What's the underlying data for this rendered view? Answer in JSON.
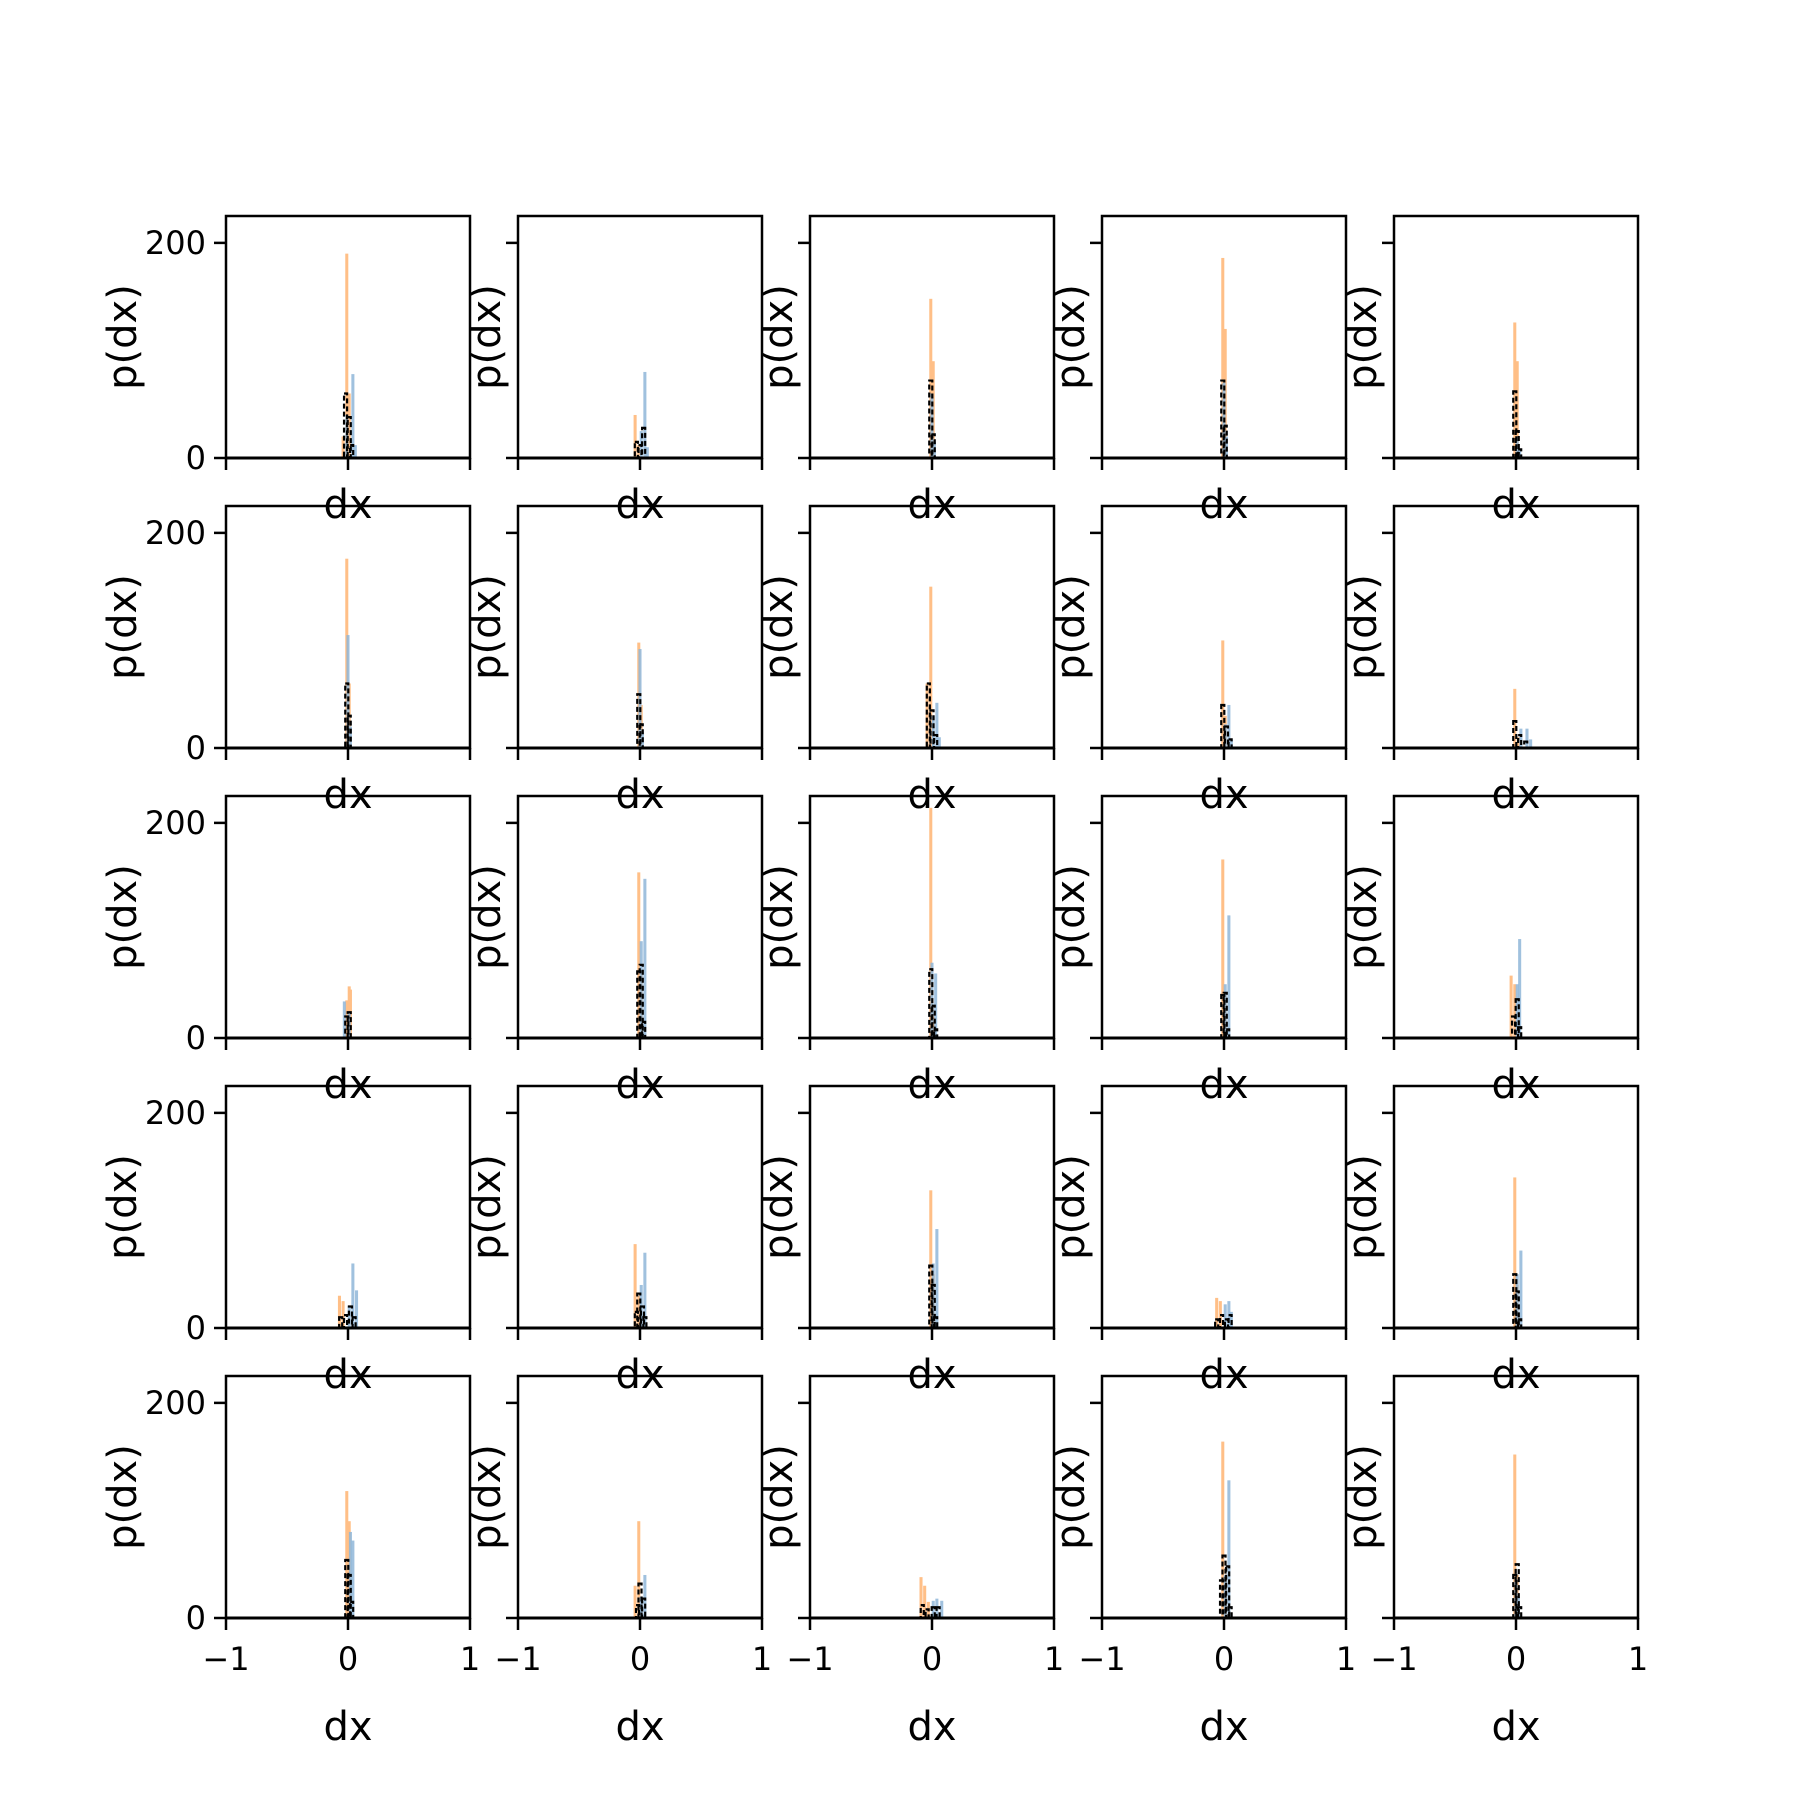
{
  "chart_data": {
    "type": "histogram-grid",
    "rows": 5,
    "cols": 5,
    "xlabel": "dx",
    "ylabel": "p(dx)",
    "xlim": [
      -1,
      1
    ],
    "ylim": [
      0,
      225
    ],
    "xticks": [
      -1,
      0,
      1
    ],
    "xtick_labels": [
      "−1",
      "0",
      "1"
    ],
    "yticks": [
      0,
      200
    ],
    "ytick_labels": [
      "0",
      "200"
    ],
    "grid": false,
    "legend": "none",
    "series_colors": {
      "orange": "#ffbf87",
      "blue": "#8fb6d8",
      "black": "#000000"
    },
    "bin_width": 0.025,
    "panels": [
      {
        "orange": [
          [
            -0.04,
            20
          ],
          [
            -0.01,
            190
          ],
          [
            0.01,
            60
          ]
        ],
        "blue": [
          [
            -0.01,
            40
          ],
          [
            0.04,
            78
          ],
          [
            0.06,
            12
          ]
        ],
        "black": [
          [
            -0.02,
            60
          ],
          [
            0.01,
            38
          ],
          [
            0.03,
            12
          ]
        ]
      },
      {
        "orange": [
          [
            -0.04,
            40
          ],
          [
            -0.01,
            12
          ]
        ],
        "blue": [
          [
            0.01,
            25
          ],
          [
            0.04,
            80
          ],
          [
            0.06,
            10
          ]
        ],
        "black": [
          [
            -0.03,
            15
          ],
          [
            0.0,
            12
          ],
          [
            0.03,
            28
          ]
        ]
      },
      {
        "orange": [
          [
            -0.01,
            148
          ],
          [
            0.01,
            90
          ]
        ],
        "blue": [
          [
            0.0,
            60
          ],
          [
            0.02,
            15
          ]
        ],
        "black": [
          [
            -0.01,
            72
          ],
          [
            0.01,
            22
          ]
        ]
      },
      {
        "orange": [
          [
            -0.01,
            186
          ],
          [
            0.01,
            120
          ]
        ],
        "blue": [
          [
            0.0,
            70
          ],
          [
            0.02,
            20
          ]
        ],
        "black": [
          [
            -0.01,
            72
          ],
          [
            0.01,
            30
          ]
        ]
      },
      {
        "orange": [
          [
            -0.01,
            126
          ],
          [
            0.01,
            90
          ]
        ],
        "blue": [
          [
            0.01,
            20
          ],
          [
            0.03,
            8
          ]
        ],
        "black": [
          [
            -0.01,
            62
          ],
          [
            0.01,
            25
          ],
          [
            0.03,
            8
          ]
        ]
      },
      {
        "orange": [
          [
            -0.01,
            176
          ],
          [
            0.01,
            60
          ]
        ],
        "blue": [
          [
            0.0,
            105
          ],
          [
            0.02,
            20
          ]
        ],
        "black": [
          [
            -0.01,
            60
          ],
          [
            0.01,
            30
          ]
        ]
      },
      {
        "orange": [
          [
            -0.01,
            98
          ],
          [
            0.01,
            40
          ]
        ],
        "blue": [
          [
            0.0,
            92
          ],
          [
            0.02,
            15
          ]
        ],
        "black": [
          [
            -0.01,
            50
          ],
          [
            0.01,
            22
          ]
        ]
      },
      {
        "orange": [
          [
            -0.04,
            60
          ],
          [
            -0.01,
            150
          ]
        ],
        "blue": [
          [
            0.01,
            30
          ],
          [
            0.04,
            42
          ],
          [
            0.06,
            10
          ]
        ],
        "black": [
          [
            -0.03,
            60
          ],
          [
            0.0,
            35
          ],
          [
            0.03,
            12
          ]
        ]
      },
      {
        "orange": [
          [
            -0.01,
            100
          ],
          [
            0.01,
            30
          ]
        ],
        "blue": [
          [
            0.01,
            22
          ],
          [
            0.04,
            40
          ],
          [
            0.06,
            8
          ]
        ],
        "black": [
          [
            -0.01,
            40
          ],
          [
            0.02,
            20
          ],
          [
            0.05,
            8
          ]
        ]
      },
      {
        "orange": [
          [
            -0.01,
            55
          ],
          [
            0.02,
            10
          ]
        ],
        "blue": [
          [
            0.04,
            18
          ],
          [
            0.09,
            18
          ],
          [
            0.12,
            8
          ]
        ],
        "black": [
          [
            -0.01,
            25
          ],
          [
            0.03,
            12
          ],
          [
            0.08,
            6
          ]
        ]
      },
      {
        "orange": [
          [
            -0.01,
            35
          ],
          [
            0.01,
            48
          ],
          [
            0.02,
            45
          ]
        ],
        "blue": [
          [
            -0.03,
            34
          ],
          [
            0.01,
            25
          ]
        ],
        "black": [
          [
            -0.01,
            20
          ],
          [
            0.01,
            24
          ]
        ]
      },
      {
        "orange": [
          [
            -0.01,
            154
          ],
          [
            0.01,
            60
          ]
        ],
        "blue": [
          [
            0.01,
            90
          ],
          [
            0.04,
            148
          ]
        ],
        "black": [
          [
            -0.01,
            62
          ],
          [
            0.01,
            68
          ],
          [
            0.03,
            15
          ]
        ]
      },
      {
        "orange": [
          [
            -0.01,
            214
          ],
          [
            0.01,
            20
          ]
        ],
        "blue": [
          [
            0.0,
            70
          ],
          [
            0.03,
            60
          ]
        ],
        "black": [
          [
            -0.01,
            64
          ],
          [
            0.01,
            30
          ],
          [
            0.03,
            8
          ]
        ]
      },
      {
        "orange": [
          [
            -0.01,
            166
          ],
          [
            0.01,
            40
          ]
        ],
        "blue": [
          [
            0.01,
            50
          ],
          [
            0.04,
            114
          ]
        ],
        "black": [
          [
            -0.01,
            40
          ],
          [
            0.01,
            42
          ],
          [
            0.03,
            8
          ]
        ]
      },
      {
        "orange": [
          [
            -0.04,
            58
          ],
          [
            -0.01,
            50
          ]
        ],
        "blue": [
          [
            0.01,
            50
          ],
          [
            0.03,
            92
          ]
        ],
        "black": [
          [
            -0.02,
            20
          ],
          [
            0.01,
            36
          ],
          [
            0.03,
            10
          ]
        ]
      },
      {
        "orange": [
          [
            -0.07,
            30
          ],
          [
            -0.04,
            25
          ]
        ],
        "blue": [
          [
            0.01,
            20
          ],
          [
            0.04,
            60
          ],
          [
            0.07,
            35
          ]
        ],
        "black": [
          [
            -0.06,
            10
          ],
          [
            -0.02,
            12
          ],
          [
            0.02,
            20
          ],
          [
            0.05,
            10
          ]
        ]
      },
      {
        "orange": [
          [
            -0.04,
            78
          ],
          [
            -0.01,
            30
          ]
        ],
        "blue": [
          [
            0.01,
            40
          ],
          [
            0.04,
            70
          ]
        ],
        "black": [
          [
            -0.03,
            15
          ],
          [
            -0.01,
            32
          ],
          [
            0.02,
            20
          ],
          [
            0.04,
            10
          ]
        ]
      },
      {
        "orange": [
          [
            -0.01,
            128
          ],
          [
            0.01,
            50
          ]
        ],
        "blue": [
          [
            0.01,
            60
          ],
          [
            0.04,
            92
          ]
        ],
        "black": [
          [
            -0.01,
            58
          ],
          [
            0.01,
            40
          ],
          [
            0.03,
            10
          ]
        ]
      },
      {
        "orange": [
          [
            -0.06,
            28
          ],
          [
            -0.03,
            25
          ]
        ],
        "blue": [
          [
            0.01,
            22
          ],
          [
            0.04,
            25
          ],
          [
            0.06,
            15
          ]
        ],
        "black": [
          [
            -0.06,
            8
          ],
          [
            -0.02,
            12
          ],
          [
            0.02,
            8
          ],
          [
            0.05,
            12
          ]
        ]
      },
      {
        "orange": [
          [
            -0.01,
            140
          ],
          [
            0.01,
            40
          ]
        ],
        "blue": [
          [
            0.01,
            50
          ],
          [
            0.04,
            72
          ]
        ],
        "black": [
          [
            -0.01,
            50
          ],
          [
            0.01,
            34
          ],
          [
            0.03,
            8
          ]
        ]
      },
      {
        "orange": [
          [
            -0.01,
            118
          ],
          [
            0.01,
            90
          ]
        ],
        "blue": [
          [
            0.02,
            80
          ],
          [
            0.04,
            72
          ]
        ],
        "black": [
          [
            -0.01,
            54
          ],
          [
            0.01,
            40
          ],
          [
            0.03,
            15
          ]
        ]
      },
      {
        "orange": [
          [
            -0.04,
            30
          ],
          [
            -0.01,
            90
          ]
        ],
        "blue": [
          [
            0.01,
            20
          ],
          [
            0.04,
            40
          ]
        ],
        "black": [
          [
            -0.02,
            12
          ],
          [
            0.0,
            32
          ],
          [
            0.03,
            18
          ]
        ]
      },
      {
        "orange": [
          [
            -0.09,
            38
          ],
          [
            -0.06,
            30
          ],
          [
            -0.03,
            15
          ]
        ],
        "blue": [
          [
            0.01,
            16
          ],
          [
            0.04,
            18
          ],
          [
            0.08,
            16
          ]
        ],
        "black": [
          [
            -0.08,
            12
          ],
          [
            -0.04,
            8
          ],
          [
            0.01,
            10
          ],
          [
            0.05,
            10
          ]
        ]
      },
      {
        "orange": [
          [
            -0.01,
            164
          ],
          [
            0.01,
            40
          ]
        ],
        "blue": [
          [
            0.01,
            40
          ],
          [
            0.04,
            128
          ]
        ],
        "black": [
          [
            -0.02,
            35
          ],
          [
            0.0,
            58
          ],
          [
            0.03,
            48
          ],
          [
            0.05,
            10
          ]
        ]
      },
      {
        "orange": [
          [
            -0.01,
            152
          ],
          [
            0.01,
            40
          ]
        ],
        "blue": [
          [
            0.0,
            36
          ],
          [
            0.02,
            20
          ]
        ],
        "black": [
          [
            -0.01,
            40
          ],
          [
            0.01,
            50
          ],
          [
            0.03,
            10
          ]
        ]
      }
    ]
  }
}
